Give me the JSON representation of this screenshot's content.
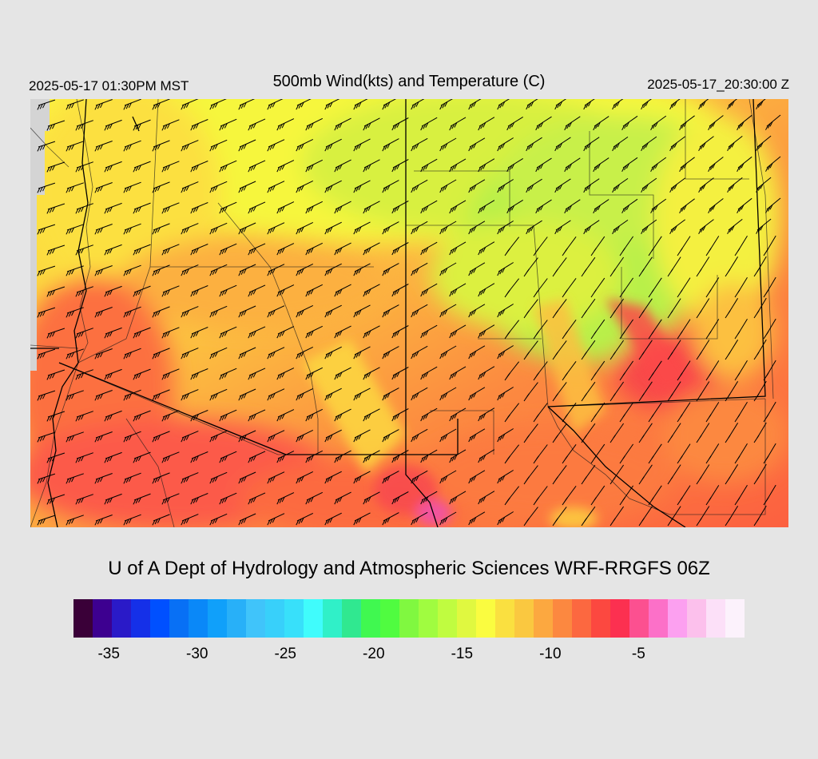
{
  "header": {
    "left_timestamp": "2025-05-17 01:30PM MST",
    "title": "500mb Wind(kts) and Temperature (C)",
    "right_timestamp": "2025-05-17_20:30:00 Z"
  },
  "credit": "U of A Dept of Hydrology and Atmospheric Sciences WRF-RRGFS 06Z",
  "colorbar": {
    "colors": [
      "#3a0038",
      "#3d0090",
      "#2a1ac8",
      "#1530e8",
      "#0050ff",
      "#0870f5",
      "#0a88f8",
      "#10a0fa",
      "#28b0f8",
      "#40c4fa",
      "#38d0fa",
      "#38e0fa",
      "#40fcfc",
      "#30f0c8",
      "#30e890",
      "#40f850",
      "#50fc40",
      "#80f840",
      "#a0fc40",
      "#c0fc40",
      "#e0f840",
      "#fafc40",
      "#fae040",
      "#fac840",
      "#fca840",
      "#fc8840",
      "#fc6840",
      "#fc4840",
      "#fc3050",
      "#fc5090",
      "#fc70c8",
      "#fca0f0",
      "#fcc0ec",
      "#fce0f8",
      "#fcf2fc"
    ],
    "ticks": [
      "-35",
      "-30",
      "-25",
      "-20",
      "-15",
      "-10",
      "-5"
    ],
    "tick_values": [
      -35,
      -30,
      -25,
      -20,
      -15,
      -10,
      -5
    ],
    "min": -37,
    "max": 1
  },
  "map": {
    "field": "500mb temperature (C) with wind barbs (kts)",
    "temperature_colors": {
      "yellow_green": "#d6f040",
      "green": "#a8ee50",
      "yellow": "#fafa40",
      "orange": "#fca040",
      "red_orange": "#fc6a40",
      "red": "#f8404e",
      "magenta": "#f050b0"
    }
  }
}
